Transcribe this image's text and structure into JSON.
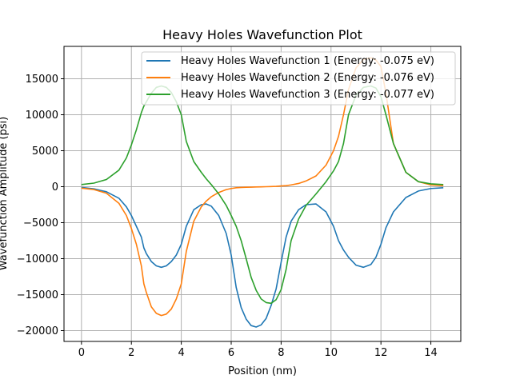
{
  "chart_data": {
    "type": "line",
    "title": "Heavy Holes Wavefunction Plot",
    "xlabel": "Position (nm)",
    "ylabel": "Wavefunction Amplitude (psi)",
    "xlim": [
      -0.7,
      15.2
    ],
    "ylim": [
      -21500,
      19500
    ],
    "xticks": [
      0,
      2,
      4,
      6,
      8,
      10,
      12,
      14
    ],
    "yticks": [
      -20000,
      -15000,
      -10000,
      -5000,
      0,
      5000,
      10000,
      15000
    ],
    "grid": true,
    "legend_position": "top-right",
    "x": [
      0,
      0.5,
      1,
      1.5,
      1.8,
      2,
      2.2,
      2.4,
      2.5,
      2.6,
      2.8,
      3,
      3.2,
      3.4,
      3.6,
      3.8,
      4,
      4.2,
      4.5,
      4.8,
      5,
      5.2,
      5.5,
      5.8,
      6,
      6.2,
      6.4,
      6.6,
      6.8,
      7,
      7.2,
      7.4,
      7.6,
      7.8,
      8,
      8.2,
      8.4,
      8.7,
      9,
      9.4,
      9.8,
      10.1,
      10.3,
      10.5,
      10.7,
      11,
      11.3,
      11.6,
      11.8,
      12,
      12.2,
      12.5,
      13,
      13.5,
      14,
      14.5
    ],
    "series": [
      {
        "name": "Heavy Holes Wavefunction 1 (Energy: -0.075 eV)",
        "color": "#1f77b4",
        "values": [
          -100,
          -300,
          -700,
          -1600,
          -2800,
          -4000,
          -5500,
          -7000,
          -8500,
          -9300,
          -10400,
          -11000,
          -11200,
          -11000,
          -10400,
          -9500,
          -8000,
          -5500,
          -3200,
          -2500,
          -2400,
          -2700,
          -4000,
          -6500,
          -9500,
          -14000,
          -16800,
          -18400,
          -19300,
          -19500,
          -19200,
          -18300,
          -16500,
          -14200,
          -10500,
          -7000,
          -4800,
          -3200,
          -2500,
          -2400,
          -3500,
          -5500,
          -7500,
          -8800,
          -9800,
          -10900,
          -11200,
          -10800,
          -9800,
          -8000,
          -5700,
          -3500,
          -1500,
          -600,
          -250,
          -150
        ]
      },
      {
        "name": "Heavy Holes Wavefunction 2 (Energy: -0.076 eV)",
        "color": "#ff7f0e",
        "values": [
          -200,
          -400,
          -900,
          -2300,
          -4000,
          -5800,
          -8000,
          -11000,
          -13500,
          -14700,
          -16700,
          -17600,
          -17900,
          -17700,
          -17000,
          -15600,
          -13500,
          -9000,
          -4800,
          -2800,
          -2000,
          -1400,
          -800,
          -400,
          -250,
          -150,
          -100,
          -80,
          -60,
          -40,
          -20,
          0,
          20,
          50,
          100,
          150,
          250,
          450,
          800,
          1500,
          3000,
          5000,
          7000,
          10000,
          13500,
          16500,
          17700,
          17900,
          17600,
          16700,
          13000,
          6000,
          2000,
          700,
          250,
          150
        ]
      },
      {
        "name": "Heavy Holes Wavefunction 3 (Energy: -0.077 eV)",
        "color": "#2ca02c",
        "values": [
          300,
          500,
          1000,
          2300,
          4000,
          5800,
          7900,
          10300,
          11200,
          11800,
          13000,
          13800,
          14000,
          13800,
          13100,
          11800,
          10000,
          6300,
          3500,
          2000,
          1100,
          300,
          -1000,
          -2600,
          -4000,
          -5500,
          -7500,
          -10000,
          -12600,
          -14400,
          -15600,
          -16100,
          -16200,
          -15700,
          -14300,
          -11500,
          -7500,
          -4500,
          -2600,
          -1000,
          700,
          2200,
          3500,
          6000,
          10000,
          12700,
          13800,
          14000,
          13700,
          12500,
          10000,
          6000,
          2000,
          700,
          400,
          300
        ]
      }
    ]
  }
}
